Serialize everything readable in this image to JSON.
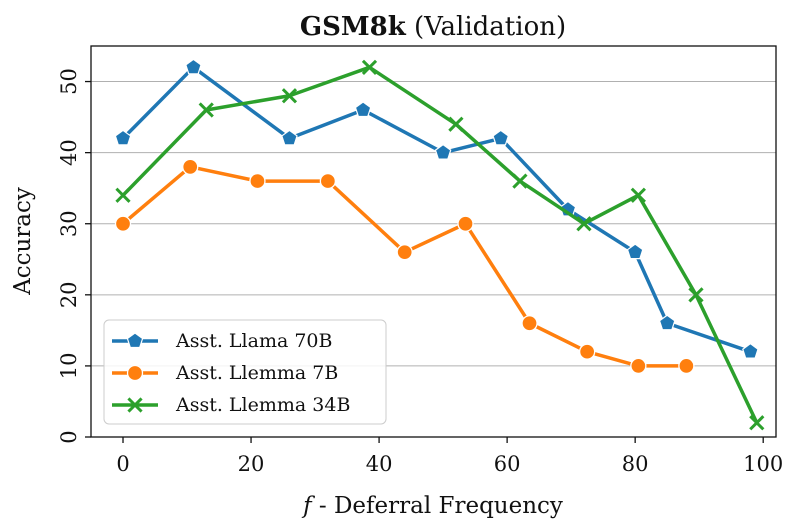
{
  "chart_data": {
    "type": "line",
    "title_bold": "GSM8k",
    "title_rest": " (Validation)",
    "xlabel": "f - Deferral Frequency",
    "xlabel_italic": "f",
    "xlabel_rest": " - Deferral Frequency",
    "ylabel": "Accuracy",
    "xlim": [
      -5,
      102
    ],
    "ylim": [
      0,
      55
    ],
    "xticks": [
      0,
      20,
      40,
      60,
      80,
      100
    ],
    "yticks": [
      0,
      10,
      20,
      30,
      40,
      50
    ],
    "grid": "horizontal",
    "legend_position": "lower-left",
    "series": [
      {
        "name": "Asst. Llama 70B",
        "color": "#1f77b4",
        "marker": "pentagon",
        "x": [
          0,
          11,
          26,
          37.5,
          50,
          59,
          69.5,
          80,
          85,
          98
        ],
        "y": [
          42,
          52,
          42,
          46,
          40,
          42,
          32,
          26,
          16,
          12
        ]
      },
      {
        "name": "Asst. Llemma 7B",
        "color": "#ff7f0e",
        "marker": "circle",
        "x": [
          0,
          10.5,
          21,
          32,
          44,
          53.5,
          63.5,
          72.5,
          80.5,
          88
        ],
        "y": [
          30,
          38,
          36,
          36,
          26,
          30,
          16,
          12,
          10,
          10
        ]
      },
      {
        "name": "Asst. Llemma 34B",
        "color": "#2ca02c",
        "marker": "x",
        "x": [
          0,
          13,
          26,
          38.5,
          52,
          62,
          72,
          80.5,
          89.5,
          99
        ],
        "y": [
          34,
          46,
          48,
          52,
          44,
          36,
          30,
          34,
          20,
          2
        ]
      }
    ]
  }
}
